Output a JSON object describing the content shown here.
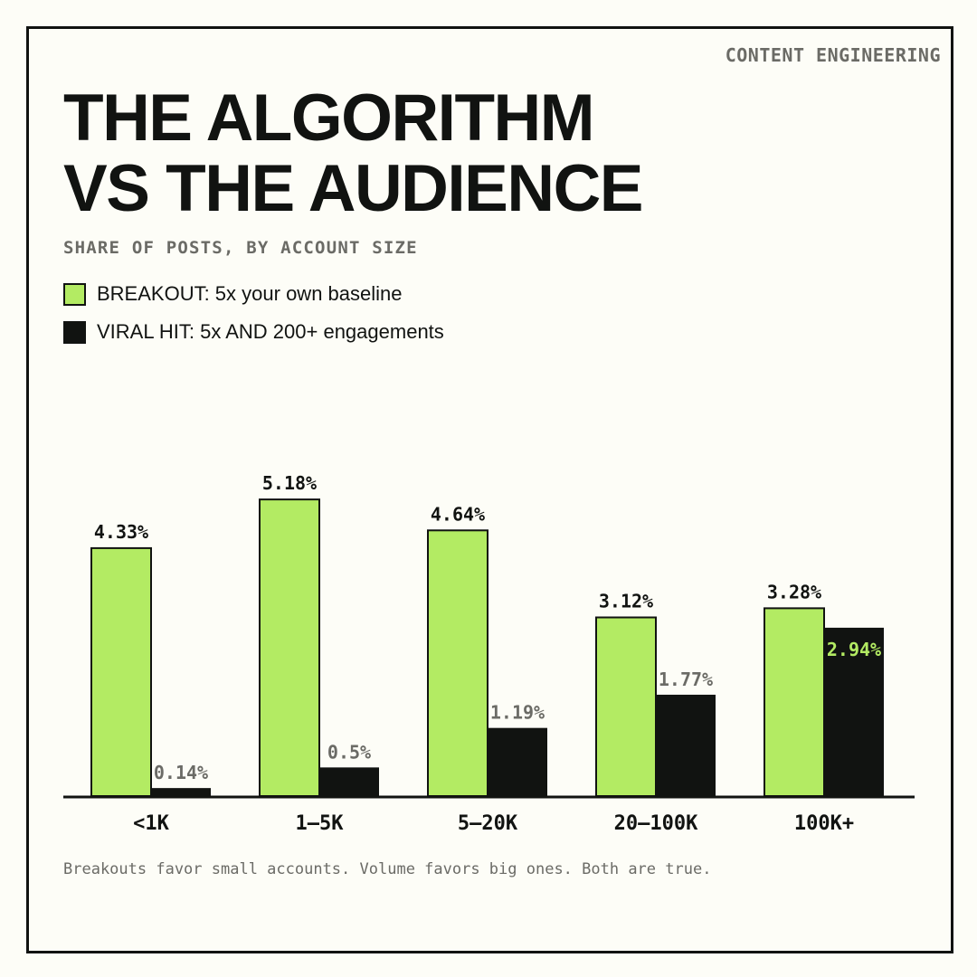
{
  "kicker": "CONTENT ENGINEERING",
  "title_lines": [
    "THE ALGORITHM",
    "VS THE AUDIENCE"
  ],
  "subtitle": "SHARE OF POSTS, BY ACCOUNT SIZE",
  "legend": [
    {
      "label": "BREAKOUT: 5x your own baseline",
      "color": "#b3eb63"
    },
    {
      "label": "VIRAL HIT: 5x AND 200+ engagements",
      "color": "#111311"
    }
  ],
  "footer": "Breakouts favor small accounts. Volume favors big ones. Both are true.",
  "colors": {
    "breakout": "#b3eb63",
    "viral": "#111311",
    "ink": "#111311",
    "muted": "#6b6b66",
    "background": "#fdfdf7"
  },
  "chart_data": {
    "type": "bar",
    "categories": [
      "<1K",
      "1–5K",
      "5–20K",
      "20–100K",
      "100K+"
    ],
    "series": [
      {
        "name": "BREAKOUT: 5x your own baseline",
        "values": [
          4.33,
          5.18,
          4.64,
          3.12,
          3.28
        ],
        "labels": [
          "4.33%",
          "5.18%",
          "4.64%",
          "3.12%",
          "3.28%"
        ]
      },
      {
        "name": "VIRAL HIT: 5x AND 200+ engagements",
        "values": [
          0.14,
          0.5,
          1.19,
          1.77,
          2.94
        ],
        "labels": [
          "0.14%",
          "0.5%",
          "1.19%",
          "1.77%",
          "2.94%"
        ]
      }
    ],
    "title": "THE ALGORITHM VS THE AUDIENCE",
    "subtitle": "SHARE OF POSTS, BY ACCOUNT SIZE",
    "xlabel": "",
    "ylabel": "",
    "ylim": [
      0,
      5.18
    ],
    "grid": false,
    "legend_position": "top-left"
  }
}
